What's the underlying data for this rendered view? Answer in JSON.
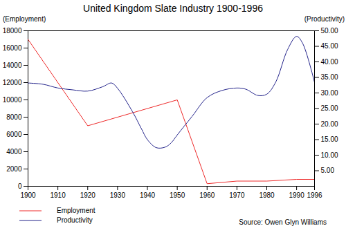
{
  "chart_data": {
    "type": "line",
    "title": "United Kingdom Slate Industry 1900-1996",
    "y_label": "(Employment)",
    "y2_label": "(Productivity)",
    "caption": "Source: Owen Glyn Williams",
    "xlim": [
      1900,
      1996
    ],
    "xticks": [
      1900,
      1910,
      1920,
      1930,
      1940,
      1950,
      1960,
      1970,
      1980,
      1990,
      1996
    ],
    "ylim": [
      0,
      18000
    ],
    "yticks": [
      0,
      2000,
      4000,
      6000,
      8000,
      10000,
      12000,
      14000,
      16000,
      18000
    ],
    "y2lim": [
      0,
      50
    ],
    "y2ticks": [
      {
        "value": 5,
        "label": "5.00"
      },
      {
        "value": 10,
        "label": "10.00"
      },
      {
        "value": 15,
        "label": "15.00"
      },
      {
        "value": 20,
        "label": "20.00"
      },
      {
        "value": 25,
        "label": "25.00"
      },
      {
        "value": 30,
        "label": "30.00"
      },
      {
        "value": 35,
        "label": "35.00"
      },
      {
        "value": 40,
        "label": "40.00"
      },
      {
        "value": 45,
        "label": "45.00"
      },
      {
        "value": 50,
        "label": "50.00"
      }
    ],
    "grid": false,
    "legend": "bottom",
    "series": [
      {
        "name": "Employment",
        "color": "#ee2b2b",
        "axis": "y",
        "x": [
          1900,
          1920,
          1950,
          1960,
          1970,
          1980,
          1990,
          1996
        ],
        "values": [
          17000,
          7000,
          10000,
          300,
          600,
          600,
          800,
          800
        ]
      },
      {
        "name": "Productivity",
        "color": "#22228a",
        "axis": "y2",
        "x": [
          1900,
          1905,
          1910,
          1915,
          1920,
          1925,
          1928,
          1930,
          1935,
          1938,
          1940,
          1943,
          1946,
          1948,
          1950,
          1955,
          1960,
          1965,
          1970,
          1973,
          1977,
          1980,
          1983,
          1987,
          1990,
          1992,
          1996
        ],
        "values": [
          33.2,
          32.8,
          31.6,
          31,
          30.6,
          32,
          33.2,
          31.5,
          24,
          18.5,
          15,
          12.4,
          12.6,
          14,
          16.5,
          22.5,
          28.5,
          30.8,
          31.6,
          31.2,
          29.2,
          29.6,
          33.5,
          44,
          48.2,
          46,
          33.4
        ]
      }
    ]
  }
}
